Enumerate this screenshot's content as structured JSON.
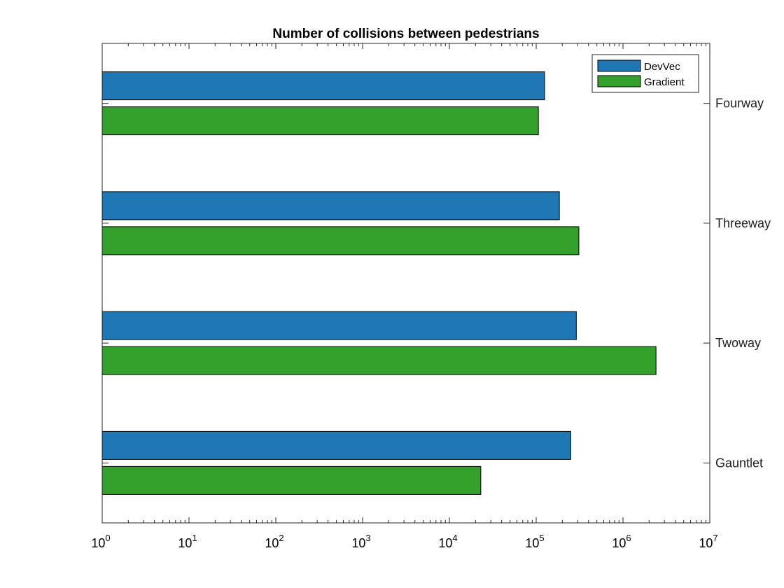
{
  "chart_data": {
    "type": "bar",
    "orientation": "horizontal",
    "title": "Number of collisions between pedestrians",
    "xlabel": "",
    "ylabel": "",
    "x_scale": "log",
    "xlim": [
      1,
      10000000
    ],
    "x_tick_labels": [
      {
        "base": "10",
        "exp": "0"
      },
      {
        "base": "10",
        "exp": "1"
      },
      {
        "base": "10",
        "exp": "2"
      },
      {
        "base": "10",
        "exp": "3"
      },
      {
        "base": "10",
        "exp": "4"
      },
      {
        "base": "10",
        "exp": "5"
      },
      {
        "base": "10",
        "exp": "6"
      },
      {
        "base": "10",
        "exp": "7"
      }
    ],
    "categories": [
      "Fourway",
      "Threeway",
      "Twoway",
      "Gauntlet"
    ],
    "y_axis_position": "right",
    "grid": false,
    "legend": "top-right",
    "series": [
      {
        "name": "DevVec",
        "color": "#1f77b4",
        "values": [
          125000,
          185000,
          290000,
          250000
        ]
      },
      {
        "name": "Gradient",
        "color": "#33a02c",
        "values": [
          106000,
          310000,
          2400000,
          23000
        ]
      }
    ]
  }
}
